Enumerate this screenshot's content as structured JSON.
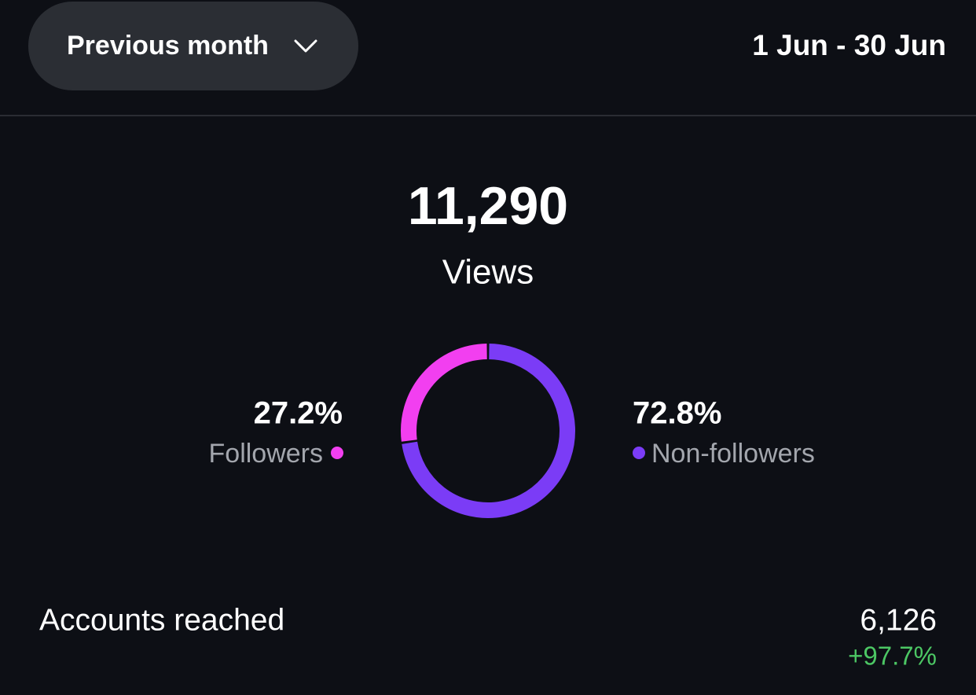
{
  "header": {
    "period": "Previous month",
    "date_range": "1 Jun - 30 Jun"
  },
  "views": {
    "value": "11,290",
    "label": "Views"
  },
  "chart_data": {
    "type": "donut",
    "categories": [
      "Followers",
      "Non-followers"
    ],
    "values": [
      27.2,
      72.8
    ],
    "value_labels": [
      "27.2%",
      "72.8%"
    ],
    "colors": [
      "#f23ff0",
      "#7b3cf6"
    ]
  },
  "metrics": [
    {
      "label": "Accounts reached",
      "value": "6,126",
      "change": "+97.7%"
    }
  ]
}
